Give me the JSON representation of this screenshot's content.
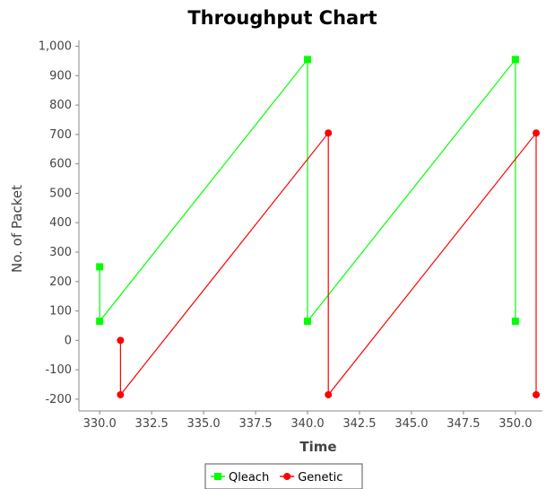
{
  "chart_data": {
    "type": "line",
    "title": "Throughput Chart",
    "xlabel": "Time",
    "ylabel": "No. of Packet",
    "xlim": [
      329,
      351.3
    ],
    "ylim": [
      -240,
      1020
    ],
    "xticks": [
      "330.0",
      "332.5",
      "335.0",
      "337.5",
      "340.0",
      "342.5",
      "345.0",
      "347.5",
      "350.0"
    ],
    "xtick_values": [
      330,
      332.5,
      335,
      337.5,
      340,
      342.5,
      345,
      347.5,
      350
    ],
    "yticks": [
      "-200",
      "-100",
      "0",
      "100",
      "200",
      "300",
      "400",
      "500",
      "600",
      "700",
      "800",
      "900",
      "1,000"
    ],
    "ytick_values": [
      -200,
      -100,
      0,
      100,
      200,
      300,
      400,
      500,
      600,
      700,
      800,
      900,
      1000
    ],
    "legend_position": "bottom",
    "grid": false,
    "series": [
      {
        "name": "Qleach",
        "color": "#00ff00",
        "marker": "square",
        "points": [
          [
            330,
            250
          ],
          [
            330,
            65
          ],
          [
            340,
            955
          ],
          [
            340,
            65
          ],
          [
            350,
            955
          ],
          [
            350,
            65
          ]
        ]
      },
      {
        "name": "Genetic",
        "color": "#ff0000",
        "marker": "circle",
        "points": [
          [
            331,
            0
          ],
          [
            331,
            -185
          ],
          [
            341,
            705
          ],
          [
            341,
            -185
          ],
          [
            351,
            705
          ],
          [
            351,
            -185
          ]
        ]
      }
    ]
  }
}
